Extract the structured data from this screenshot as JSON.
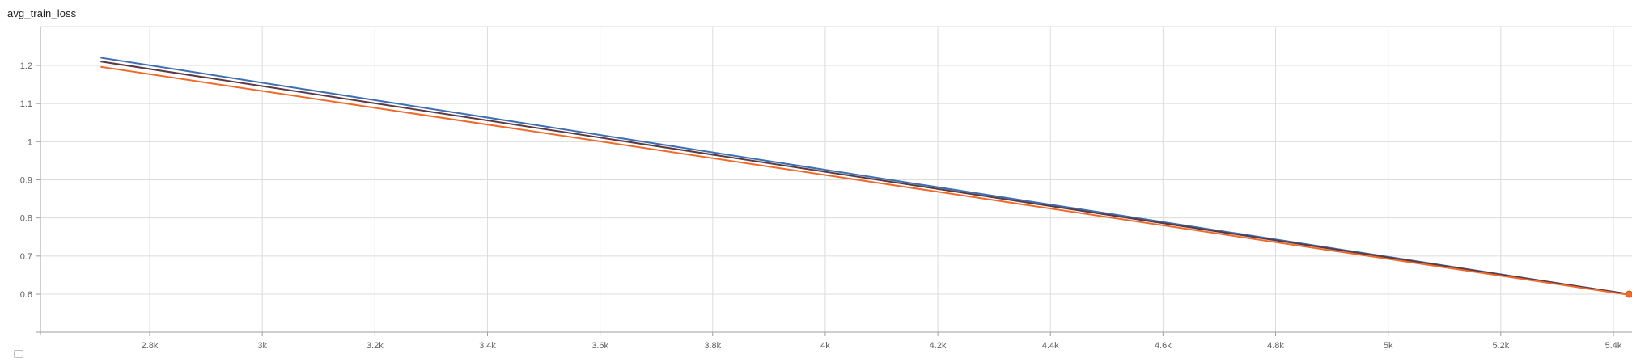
{
  "title": "avg_train_loss",
  "colors": {
    "grid": "#dcdcdc",
    "axis": "#9e9e9e",
    "series_blue": "#3f6fb0",
    "series_dark": "#5a3a45",
    "series_orange": "#f06a2a",
    "marker": "#f26b2c"
  },
  "chart_data": {
    "type": "line",
    "title": "avg_train_loss",
    "xlabel": "",
    "ylabel": "",
    "xlim": [
      2450,
      5650
    ],
    "ylim": [
      0.5,
      1.3
    ],
    "grid": true,
    "x_ticks": [
      2800,
      3000,
      3200,
      3400,
      3600,
      3800,
      4000,
      4200,
      4400,
      4600,
      4800,
      5000,
      5200,
      5400
    ],
    "x_tick_labels": [
      "2.8k",
      "3k",
      "3.2k",
      "3.4k",
      "3.6k",
      "3.8k",
      "4k",
      "4.2k",
      "4.4k",
      "4.6k",
      "4.8k",
      "5k",
      "5.2k",
      "5.4k"
    ],
    "y_ticks": [
      0.6,
      0.7,
      0.8,
      0.9,
      1.0,
      1.1,
      1.2
    ],
    "y_tick_labels": [
      "0.6",
      "0.7",
      "0.8",
      "0.9",
      "1",
      "1.1",
      "1.2"
    ],
    "series": [
      {
        "color": "#3f6fb0",
        "x": [
          2714,
          5428
        ],
        "y": [
          1.22,
          0.6
        ]
      },
      {
        "color": "#5a3a45",
        "x": [
          2714,
          5428
        ],
        "y": [
          1.21,
          0.6
        ]
      },
      {
        "color": "#f06a2a",
        "x": [
          2714,
          5428
        ],
        "y": [
          1.196,
          0.598
        ]
      }
    ],
    "markers": [
      {
        "x": 5428,
        "y": 0.6,
        "color": "#f26b2c"
      }
    ]
  }
}
